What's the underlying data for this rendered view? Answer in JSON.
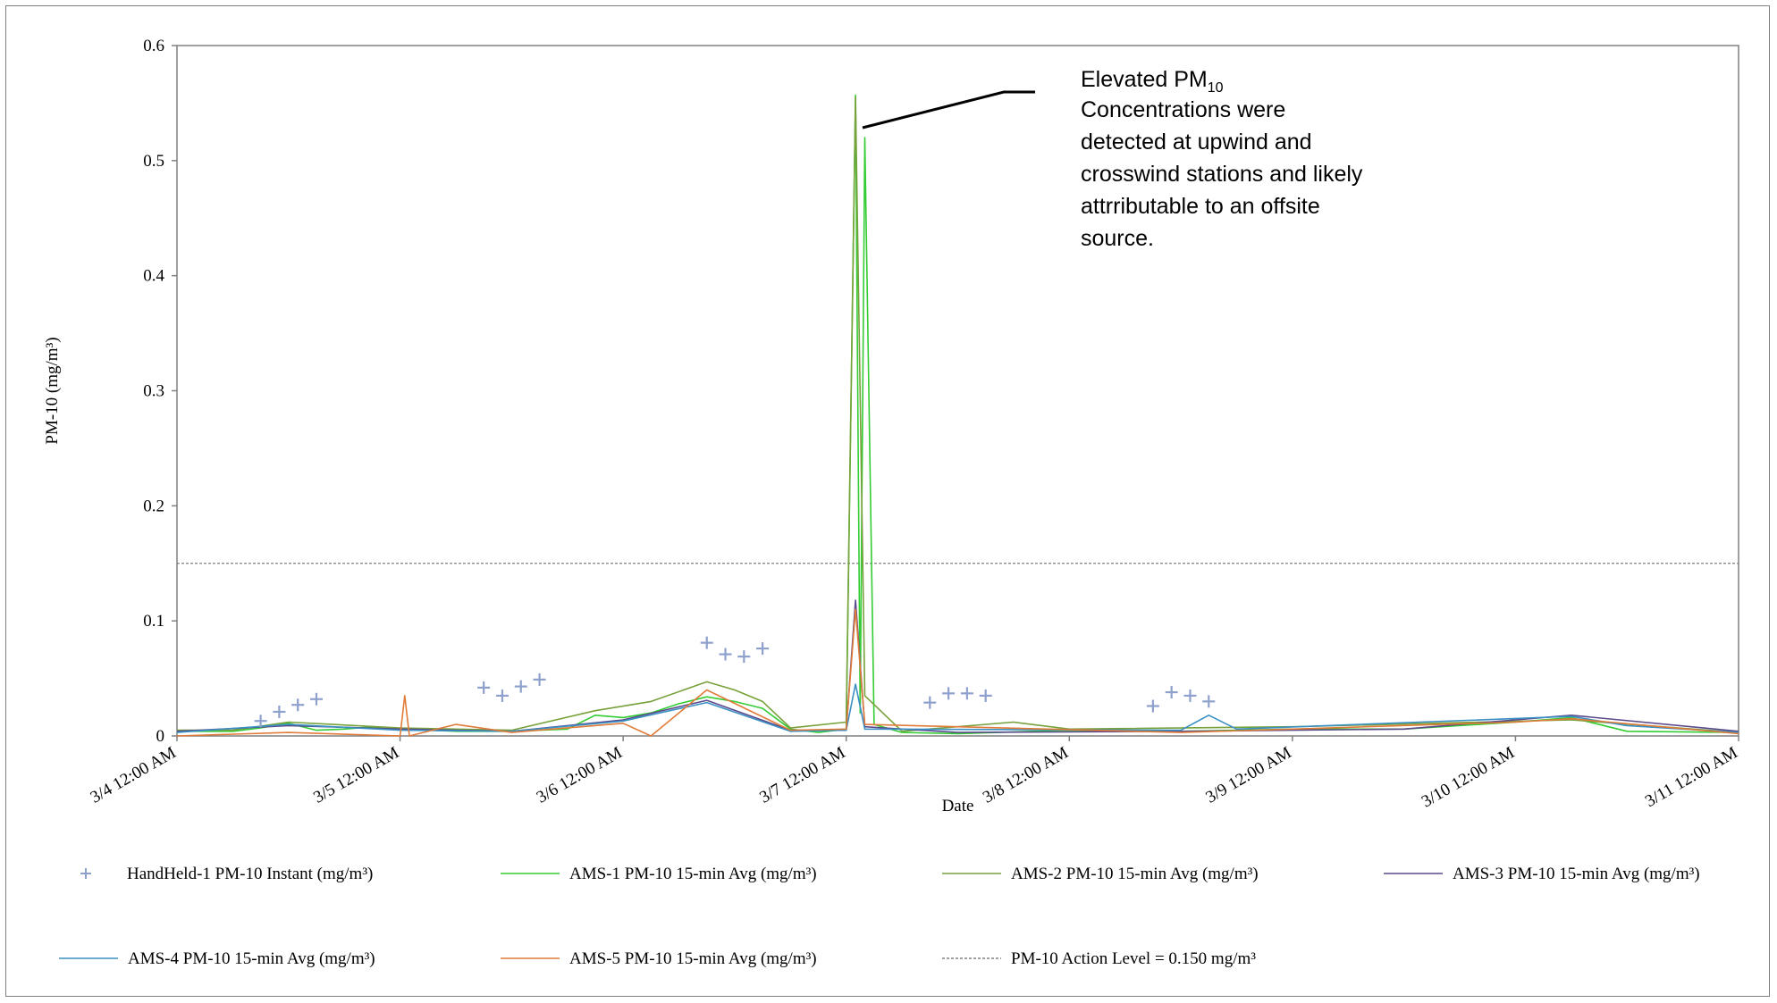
{
  "chart_data": {
    "type": "line",
    "xlabel": "Date",
    "ylabel": "PM-10 (mg/m³)",
    "xlim": [
      "3/4 12:00 AM",
      "3/11 12:00 AM"
    ],
    "ylim": [
      0,
      0.6
    ],
    "x_ticks": [
      "3/4 12:00 AM",
      "3/5 12:00 AM",
      "3/6 12:00 AM",
      "3/7 12:00 AM",
      "3/8 12:00 AM",
      "3/9 12:00 AM",
      "3/10 12:00 AM",
      "3/11 12:00 AM"
    ],
    "y_ticks": [
      "0",
      "0.1",
      "0.2",
      "0.3",
      "0.4",
      "0.5",
      "0.6"
    ],
    "grid": false,
    "legend_position": "bottom",
    "annotation": {
      "line1_prefix": "Elevated PM",
      "line1_sub": "10",
      "lines": [
        "Concentrations were",
        "detected at upwind and",
        "crosswind stations and likely",
        "attrributable to an offsite",
        "source."
      ]
    },
    "action_level": {
      "name": "PM-10 Action Level = 0.150 mg/m³",
      "value": 0.15,
      "color": "#808080"
    },
    "handheld": {
      "name": "HandHeld-1 PM-10 Instant (mg/m³)",
      "color": "#8ea0cc",
      "points": [
        {
          "x": "3/4 9:00 AM",
          "y": 0.013
        },
        {
          "x": "3/4 11:00 AM",
          "y": 0.021
        },
        {
          "x": "3/4 1:00 PM",
          "y": 0.027
        },
        {
          "x": "3/4 3:00 PM",
          "y": 0.032
        },
        {
          "x": "3/5 9:00 AM",
          "y": 0.042
        },
        {
          "x": "3/5 11:00 AM",
          "y": 0.035
        },
        {
          "x": "3/5 1:00 PM",
          "y": 0.043
        },
        {
          "x": "3/5 3:00 PM",
          "y": 0.049
        },
        {
          "x": "3/6 9:00 AM",
          "y": 0.081
        },
        {
          "x": "3/6 11:00 AM",
          "y": 0.071
        },
        {
          "x": "3/6 1:00 PM",
          "y": 0.069
        },
        {
          "x": "3/6 3:00 PM",
          "y": 0.076
        },
        {
          "x": "3/7 9:00 AM",
          "y": 0.029
        },
        {
          "x": "3/7 11:00 AM",
          "y": 0.037
        },
        {
          "x": "3/7 1:00 PM",
          "y": 0.037
        },
        {
          "x": "3/7 3:00 PM",
          "y": 0.035
        },
        {
          "x": "3/8 9:00 AM",
          "y": 0.026
        },
        {
          "x": "3/8 11:00 AM",
          "y": 0.038
        },
        {
          "x": "3/8 1:00 PM",
          "y": 0.035
        },
        {
          "x": "3/8 3:00 PM",
          "y": 0.03
        }
      ]
    },
    "series": [
      {
        "name": "AMS-1 PM-10 15-min Avg (mg/m³)",
        "color": "#33cc33",
        "points": [
          {
            "x": "3/4 12:00 AM",
            "y": 0.004
          },
          {
            "x": "3/4 6:00 AM",
            "y": 0.004
          },
          {
            "x": "3/4 9:00 AM",
            "y": 0.007
          },
          {
            "x": "3/4 12:00 PM",
            "y": 0.011
          },
          {
            "x": "3/4 3:00 PM",
            "y": 0.005
          },
          {
            "x": "3/4 6:00 PM",
            "y": 0.006
          },
          {
            "x": "3/4 9:00 PM",
            "y": 0.008
          },
          {
            "x": "3/5 12:00 AM",
            "y": 0.006
          },
          {
            "x": "3/5 6:00 AM",
            "y": 0.004
          },
          {
            "x": "3/5 12:00 PM",
            "y": 0.004
          },
          {
            "x": "3/5 6:00 PM",
            "y": 0.006
          },
          {
            "x": "3/5 9:00 PM",
            "y": 0.018
          },
          {
            "x": "3/6 12:00 AM",
            "y": 0.016
          },
          {
            "x": "3/6 3:00 AM",
            "y": 0.02
          },
          {
            "x": "3/6 6:00 AM",
            "y": 0.028
          },
          {
            "x": "3/6 9:00 AM",
            "y": 0.034
          },
          {
            "x": "3/6 12:00 PM",
            "y": 0.03
          },
          {
            "x": "3/6 3:00 PM",
            "y": 0.024
          },
          {
            "x": "3/6 6:00 PM",
            "y": 0.006
          },
          {
            "x": "3/6 9:00 PM",
            "y": 0.003
          },
          {
            "x": "3/7 12:00 AM",
            "y": 0.006
          },
          {
            "x": "3/7 1:00 AM",
            "y": 0.557
          },
          {
            "x": "3/7 1:30 AM",
            "y": 0.02
          },
          {
            "x": "3/7 2:00 AM",
            "y": 0.52
          },
          {
            "x": "3/7 3:00 AM",
            "y": 0.01
          },
          {
            "x": "3/7 6:00 AM",
            "y": 0.003
          },
          {
            "x": "3/7 12:00 PM",
            "y": 0.002
          },
          {
            "x": "3/8 12:00 AM",
            "y": 0.005
          },
          {
            "x": "3/8 12:00 PM",
            "y": 0.004
          },
          {
            "x": "3/9 12:00 AM",
            "y": 0.006
          },
          {
            "x": "3/9 12:00 PM",
            "y": 0.006
          },
          {
            "x": "3/10 12:00 AM",
            "y": 0.012
          },
          {
            "x": "3/10 6:00 AM",
            "y": 0.016
          },
          {
            "x": "3/10 12:00 PM",
            "y": 0.004
          },
          {
            "x": "3/11 12:00 AM",
            "y": 0.003
          }
        ]
      },
      {
        "name": "AMS-2 PM-10 15-min Avg (mg/m³)",
        "color": "#77a13b",
        "points": [
          {
            "x": "3/4 12:00 AM",
            "y": 0.005
          },
          {
            "x": "3/4 6:00 AM",
            "y": 0.005
          },
          {
            "x": "3/4 12:00 PM",
            "y": 0.012
          },
          {
            "x": "3/5 12:00 AM",
            "y": 0.007
          },
          {
            "x": "3/5 12:00 PM",
            "y": 0.005
          },
          {
            "x": "3/5 9:00 PM",
            "y": 0.022
          },
          {
            "x": "3/6 3:00 AM",
            "y": 0.03
          },
          {
            "x": "3/6 9:00 AM",
            "y": 0.047
          },
          {
            "x": "3/6 12:00 PM",
            "y": 0.04
          },
          {
            "x": "3/6 3:00 PM",
            "y": 0.03
          },
          {
            "x": "3/6 6:00 PM",
            "y": 0.007
          },
          {
            "x": "3/7 12:00 AM",
            "y": 0.012
          },
          {
            "x": "3/7 1:00 AM",
            "y": 0.555
          },
          {
            "x": "3/7 2:00 AM",
            "y": 0.035
          },
          {
            "x": "3/7 6:00 AM",
            "y": 0.004
          },
          {
            "x": "3/7 6:00 PM",
            "y": 0.012
          },
          {
            "x": "3/8 12:00 AM",
            "y": 0.006
          },
          {
            "x": "3/9 12:00 AM",
            "y": 0.008
          },
          {
            "x": "3/10 6:00 AM",
            "y": 0.014
          },
          {
            "x": "3/11 12:00 AM",
            "y": 0.003
          }
        ]
      },
      {
        "name": "AMS-3 PM-10 15-min Avg (mg/m³)",
        "color": "#5b4a8b",
        "points": [
          {
            "x": "3/4 12:00 AM",
            "y": 0.004
          },
          {
            "x": "3/4 12:00 PM",
            "y": 0.009
          },
          {
            "x": "3/5 12:00 AM",
            "y": 0.006
          },
          {
            "x": "3/5 12:00 PM",
            "y": 0.004
          },
          {
            "x": "3/6 12:00 AM",
            "y": 0.014
          },
          {
            "x": "3/6 9:00 AM",
            "y": 0.031
          },
          {
            "x": "3/6 6:00 PM",
            "y": 0.005
          },
          {
            "x": "3/7 12:00 AM",
            "y": 0.005
          },
          {
            "x": "3/7 1:00 AM",
            "y": 0.118
          },
          {
            "x": "3/7 2:00 AM",
            "y": 0.008
          },
          {
            "x": "3/7 12:00 PM",
            "y": 0.003
          },
          {
            "x": "3/8 12:00 PM",
            "y": 0.004
          },
          {
            "x": "3/9 12:00 PM",
            "y": 0.006
          },
          {
            "x": "3/10 6:00 AM",
            "y": 0.018
          },
          {
            "x": "3/11 12:00 AM",
            "y": 0.004
          }
        ]
      },
      {
        "name": "AMS-4 PM-10 15-min Avg (mg/m³)",
        "color": "#3a8fc4",
        "points": [
          {
            "x": "3/4 12:00 AM",
            "y": 0.003
          },
          {
            "x": "3/4 12:00 PM",
            "y": 0.01
          },
          {
            "x": "3/5 12:00 AM",
            "y": 0.005
          },
          {
            "x": "3/5 12:00 PM",
            "y": 0.004
          },
          {
            "x": "3/6 12:00 AM",
            "y": 0.013
          },
          {
            "x": "3/6 9:00 AM",
            "y": 0.029
          },
          {
            "x": "3/6 6:00 PM",
            "y": 0.004
          },
          {
            "x": "3/7 12:00 AM",
            "y": 0.005
          },
          {
            "x": "3/7 1:00 AM",
            "y": 0.045
          },
          {
            "x": "3/7 2:00 AM",
            "y": 0.006
          },
          {
            "x": "3/8 12:00 PM",
            "y": 0.005
          },
          {
            "x": "3/8 3:00 PM",
            "y": 0.018
          },
          {
            "x": "3/8 6:00 PM",
            "y": 0.006
          },
          {
            "x": "3/10 6:00 AM",
            "y": 0.017
          },
          {
            "x": "3/10 12:00 PM",
            "y": 0.009
          },
          {
            "x": "3/11 12:00 AM",
            "y": 0.003
          }
        ]
      },
      {
        "name": "AMS-5 PM-10 15-min Avg (mg/m³)",
        "color": "#e07b39",
        "points": [
          {
            "x": "3/4 12:00 AM",
            "y": 0.0
          },
          {
            "x": "3/4 12:00 PM",
            "y": 0.003
          },
          {
            "x": "3/5 12:00 AM",
            "y": 0.0
          },
          {
            "x": "3/5 12:30 AM",
            "y": 0.035
          },
          {
            "x": "3/5 1:00 AM",
            "y": 0.0
          },
          {
            "x": "3/5 6:00 AM",
            "y": 0.01
          },
          {
            "x": "3/5 12:00 PM",
            "y": 0.003
          },
          {
            "x": "3/6 12:00 AM",
            "y": 0.011
          },
          {
            "x": "3/6 3:00 AM",
            "y": 0.0
          },
          {
            "x": "3/6 9:00 AM",
            "y": 0.04
          },
          {
            "x": "3/6 6:00 PM",
            "y": 0.005
          },
          {
            "x": "3/7 12:00 AM",
            "y": 0.006
          },
          {
            "x": "3/7 1:00 AM",
            "y": 0.11
          },
          {
            "x": "3/7 2:00 AM",
            "y": 0.01
          },
          {
            "x": "3/8 12:00 PM",
            "y": 0.003
          },
          {
            "x": "3/9 12:00 AM",
            "y": 0.006
          },
          {
            "x": "3/10 12:00 AM",
            "y": 0.012
          },
          {
            "x": "3/10 6:00 AM",
            "y": 0.015
          },
          {
            "x": "3/11 12:00 AM",
            "y": 0.002
          }
        ]
      }
    ]
  }
}
